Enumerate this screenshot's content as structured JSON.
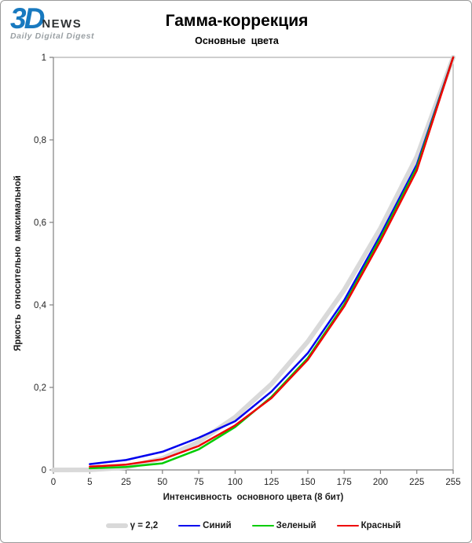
{
  "header": {
    "logo": {
      "part1": "3D",
      "part2": "NEWS",
      "tagline": "Daily Digital Digest",
      "brand_blue": "#1879bf",
      "dark_gray": "#2f3335",
      "light_gray": "#9aa0a4"
    },
    "title": "Гамма-коррекция",
    "subtitle": "Основные  цвета"
  },
  "chart_data": {
    "type": "line",
    "title": "Гамма-коррекция",
    "subtitle": "Основные цвета",
    "xlabel": "Интенсивность  основного цвета (8 бит)",
    "ylabel": "Яркость  относительно  максимальной",
    "categories": [
      "0",
      "5",
      "25",
      "50",
      "75",
      "100",
      "125",
      "150",
      "175",
      "200",
      "225",
      "255"
    ],
    "yticks": [
      "0",
      "0,2",
      "0,4",
      "0,6",
      "0,8",
      "1"
    ],
    "ylim": [
      0,
      1
    ],
    "grid": false,
    "legend_position": "bottom",
    "axis_color": "#808080",
    "border_color": "#9c9c9c",
    "series": [
      {
        "name": "γ = 2,2",
        "color": "#d9d9d9",
        "width": 6,
        "values": [
          0,
          0.0002,
          0.006,
          0.028,
          0.068,
          0.128,
          0.208,
          0.311,
          0.436,
          0.586,
          0.759,
          1.0
        ]
      },
      {
        "name": "Синий",
        "color": "#0000ee",
        "width": 2.5,
        "values": [
          null,
          0.014,
          0.024,
          0.044,
          0.078,
          0.118,
          0.19,
          0.283,
          0.411,
          0.57,
          0.74,
          1.0
        ]
      },
      {
        "name": "Зеленый",
        "color": "#00cc00",
        "width": 2.5,
        "values": [
          null,
          0.004,
          0.007,
          0.016,
          0.05,
          0.104,
          0.177,
          0.271,
          0.401,
          0.562,
          0.733,
          1.0
        ]
      },
      {
        "name": "Красный",
        "color": "#ee0000",
        "width": 2.5,
        "values": [
          null,
          0.008,
          0.013,
          0.026,
          0.058,
          0.108,
          0.174,
          0.267,
          0.396,
          0.555,
          0.726,
          1.0
        ]
      }
    ]
  }
}
